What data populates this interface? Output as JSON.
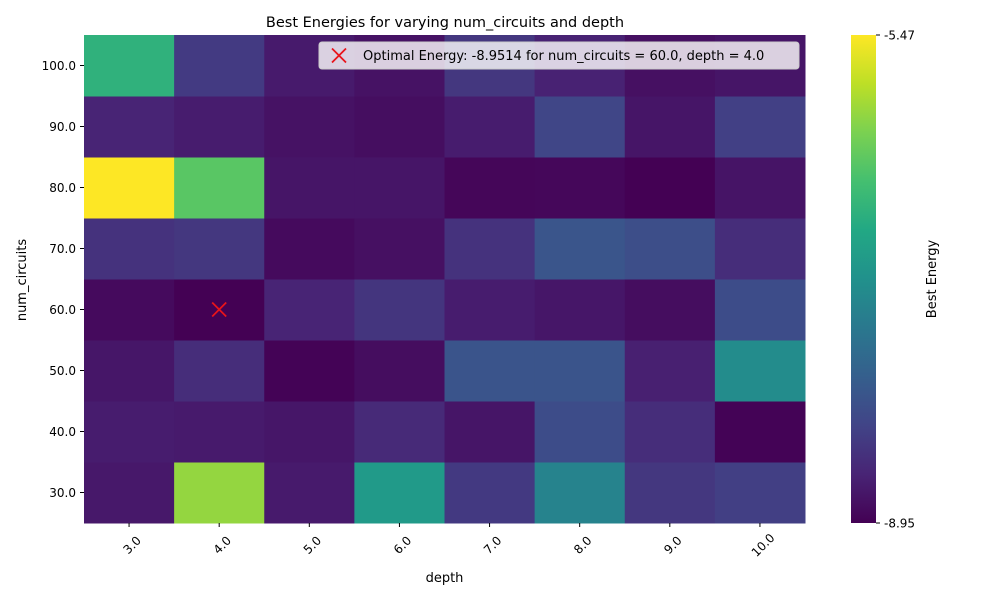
{
  "chart_data": {
    "type": "heatmap",
    "title": "Best Energies for varying num_circuits and depth",
    "xlabel": "depth",
    "ylabel": "num_circuits",
    "x_categories": [
      "3.0",
      "4.0",
      "5.0",
      "6.0",
      "7.0",
      "8.0",
      "9.0",
      "10.0"
    ],
    "y_categories": [
      "30.0",
      "40.0",
      "50.0",
      "60.0",
      "70.0",
      "80.0",
      "90.0",
      "100.0"
    ],
    "values": [
      [
        -8.72,
        -6.03,
        -8.7,
        -7.07,
        -8.37,
        -7.4,
        -8.4,
        -8.31
      ],
      [
        -8.68,
        -8.7,
        -8.74,
        -8.54,
        -8.75,
        -8.15,
        -8.5,
        -8.93
      ],
      [
        -8.74,
        -8.5,
        -8.93,
        -8.83,
        -8.05,
        -8.05,
        -8.64,
        -7.28
      ],
      [
        -8.86,
        -8.9514,
        -8.6,
        -8.42,
        -8.68,
        -8.74,
        -8.83,
        -8.15
      ],
      [
        -8.45,
        -8.4,
        -8.86,
        -8.8,
        -8.45,
        -8.04,
        -8.13,
        -8.5
      ],
      [
        -5.47,
        -6.38,
        -8.75,
        -8.75,
        -8.9,
        -8.89,
        -8.95,
        -8.76
      ],
      [
        -8.6,
        -8.68,
        -8.78,
        -8.82,
        -8.68,
        -8.23,
        -8.75,
        -8.3
      ],
      [
        -6.72,
        -8.36,
        -8.7,
        -8.78,
        -8.4,
        -8.62,
        -8.8,
        -8.75
      ]
    ],
    "colorbar": {
      "label": "Best Energy",
      "min": -8.95,
      "max": -5.47,
      "tick_labels": [
        "-5.47",
        "-8.95"
      ],
      "colormap": "viridis"
    },
    "marker": {
      "x": "4.0",
      "y": "60.0",
      "symbol": "x",
      "color": "#e8141b",
      "legend_label": "Optimal Energy: -8.9514 for num_circuits = 60.0, depth = 4.0"
    },
    "legend_position": "top-right",
    "grid": false
  }
}
